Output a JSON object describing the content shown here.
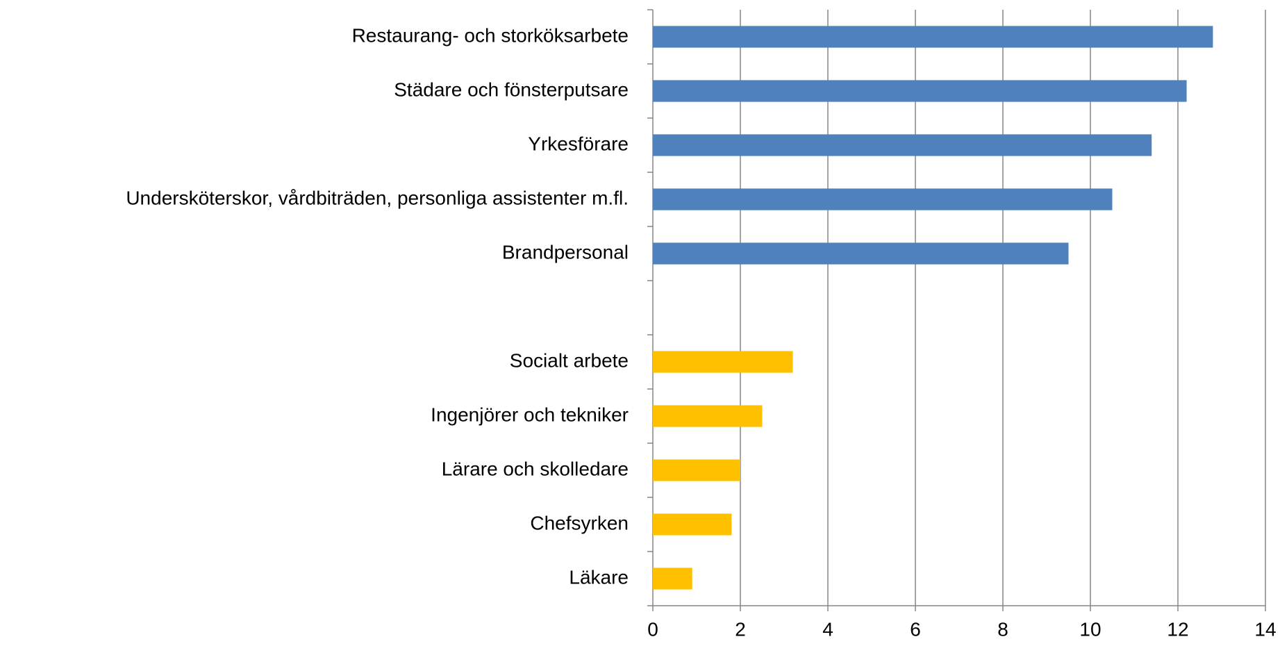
{
  "chart_data": {
    "type": "barh",
    "categories": [
      "Restaurang- och storköksarbete",
      "Städare och fönsterputsare",
      "Yrkesförare",
      "Undersköterskor, vårdbiträden, personliga assistenter m.fl.",
      "Brandpersonal",
      null,
      "Socialt arbete",
      "Ingenjörer och tekniker",
      "Lärare och skolledare",
      "Chefsyrken",
      "Läkare"
    ],
    "values": [
      12.8,
      12.2,
      11.4,
      10.5,
      9.5,
      null,
      3.2,
      2.5,
      2.0,
      1.8,
      0.9
    ],
    "colors": [
      "#4f81bd",
      "#4f81bd",
      "#4f81bd",
      "#4f81bd",
      "#4f81bd",
      null,
      "#ffc000",
      "#ffc000",
      "#ffc000",
      "#ffc000",
      "#ffc000"
    ],
    "xlim": [
      0,
      14
    ],
    "xticks": [
      0,
      2,
      4,
      6,
      8,
      10,
      12,
      14
    ],
    "grid": true
  }
}
